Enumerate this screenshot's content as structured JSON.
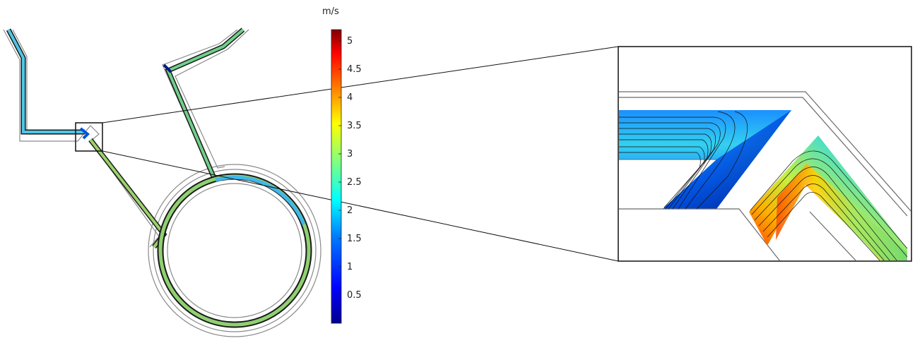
{
  "colorbar": {
    "unit": "m/s",
    "min": 0,
    "max": 5.2,
    "ticks": [
      "0.5",
      "1",
      "1.5",
      "2",
      "2.5",
      "3",
      "3.5",
      "4",
      "4.5",
      "5"
    ],
    "colormap": [
      "#00008f",
      "#0000ff",
      "#0080ff",
      "#00ffff",
      "#80ff80",
      "#ffff00",
      "#ff8000",
      "#ff0000",
      "#800000"
    ]
  },
  "colors": {
    "wall": "#9a9a9a",
    "channel_outline": "#1a1a1a",
    "flow_low": "#1f5fd8",
    "flow_mid": "#5ec9e6",
    "flow_high": "#9bd36a"
  }
}
